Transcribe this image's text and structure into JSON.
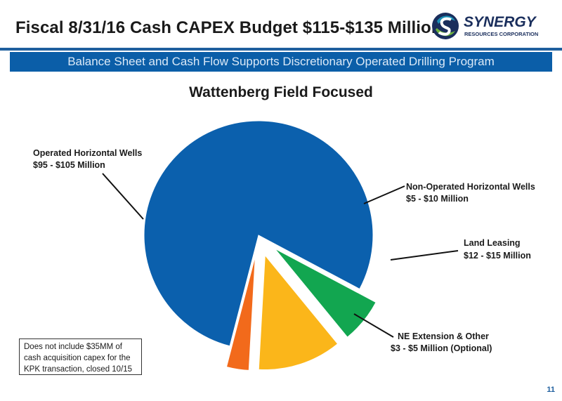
{
  "header": {
    "title": "Fiscal 8/31/16 Cash CAPEX Budget $115-$135 Million",
    "banner": "Balance Sheet and Cash Flow Supports Discretionary Operated Drilling Program"
  },
  "logo": {
    "name": "SYNERGY",
    "tagline": "RESOURCES CORPORATION",
    "colors": {
      "navy": "#1a2e5c",
      "teal": "#1b8fb5",
      "green": "#6db33f"
    }
  },
  "chart_data": {
    "type": "pie",
    "title": "Wattenberg Field Focused",
    "slices": [
      {
        "line1": "Operated Horizontal Wells",
        "line2": "$95 - $105 Million",
        "value": 100,
        "color": "#0b60ad",
        "exploded": false
      },
      {
        "line1": "Non-Operated Horizontal Wells",
        "line2": "$5 - $10 Million",
        "value": 8,
        "color": "#12a650",
        "exploded": true
      },
      {
        "line1": "Land Leasing",
        "line2": "$12 - $15 Million",
        "value": 15,
        "color": "#fbb61a",
        "exploded": true
      },
      {
        "line1": "NE Extension & Other",
        "line2": "$3 - $5 Million (Optional)",
        "value": 4,
        "color": "#f26a1b",
        "exploded": true
      }
    ]
  },
  "note": "Does not include $35MM of cash acquisition capex for the KPK transaction, closed 10/15",
  "page_number": "11"
}
